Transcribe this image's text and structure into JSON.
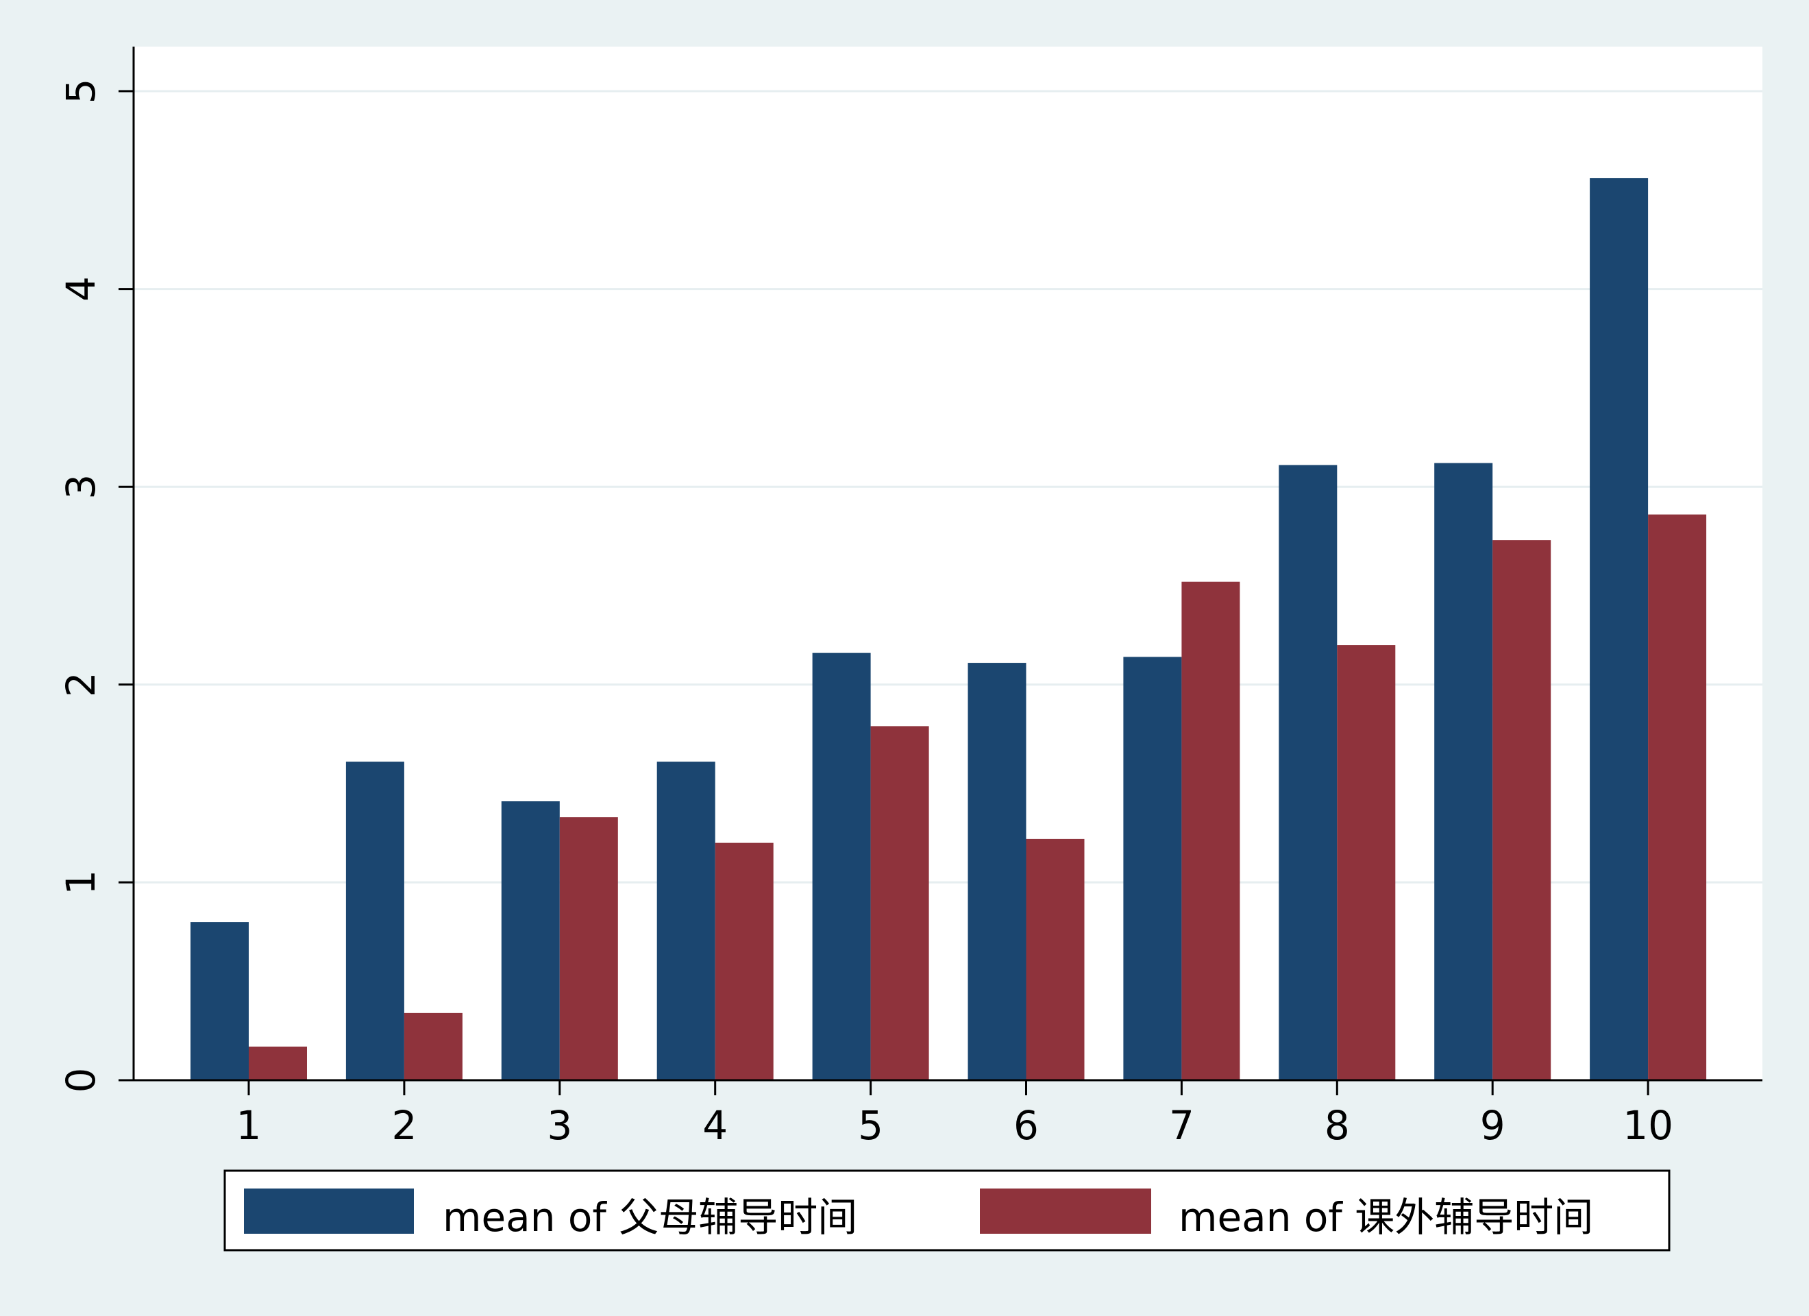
{
  "chart_data": {
    "type": "bar",
    "categories": [
      "1",
      "2",
      "3",
      "4",
      "5",
      "6",
      "7",
      "8",
      "9",
      "10"
    ],
    "series": [
      {
        "name": "mean of 父母辅导时间",
        "color": "#1b4670",
        "values": [
          0.8,
          1.61,
          1.41,
          1.61,
          2.16,
          2.11,
          2.14,
          3.11,
          3.12,
          4.56
        ]
      },
      {
        "name": "mean of 课外辅导时间",
        "color": "#8f333c",
        "values": [
          0.17,
          0.34,
          1.33,
          1.2,
          1.79,
          1.22,
          2.52,
          2.2,
          2.73,
          2.86
        ]
      }
    ],
    "ylim": [
      0,
      5
    ],
    "yticks": [
      "0",
      "1",
      "2",
      "3",
      "4",
      "5"
    ],
    "grid": true,
    "legend_position": "bottom"
  }
}
